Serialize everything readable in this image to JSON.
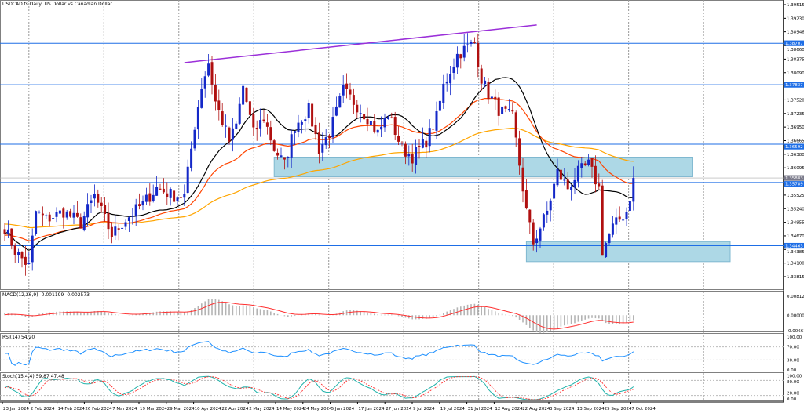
{
  "header": {
    "title": "USDCAD.fs Daily:  US Dollar vs Canadian Dollar"
  },
  "colors": {
    "bull": "#1428c8",
    "bear": "#b01010",
    "sma_fast": "#000000",
    "ema_mid": "#ff4500",
    "ma_slow": "#ffa500",
    "level": "#1e6ee6",
    "zone": "#add8e6",
    "trendline": "#9b30d9",
    "macd_hist": "#b4b4b4",
    "macd_signal": "#ff3030",
    "rsi": "#1e90ff",
    "stoch_main": "#20b2aa",
    "stoch_signal": "#ff3030"
  },
  "chart_data": {
    "type": "candlestick",
    "symbol": "USDCAD.fs",
    "timeframe": "Daily",
    "y_range": [
      1.33815,
      1.39515
    ],
    "y_ticks": [
      "1.39515",
      "1.39230",
      "1.38946",
      "1.38660",
      "1.38375",
      "1.38090",
      "1.37520",
      "1.37235",
      "1.36950",
      "1.36665",
      "1.36380",
      "1.36095",
      "1.35525",
      "1.35240",
      "1.34955",
      "1.34670",
      "1.34385",
      "1.34100",
      "1.33815"
    ],
    "x_ticks": [
      "23 Jan 2024",
      "2 Feb 2024",
      "14 Feb 2024",
      "26 Feb 2024",
      "7 Mar 2024",
      "19 Mar 2024",
      "29 Mar 2024",
      "10 Apr 2024",
      "22 Apr 2024",
      "2 May 2024",
      "14 May 2024",
      "24 May 2024",
      "5 Jun 2024",
      "17 Jun 2024",
      "27 Jun 2024",
      "9 Jul 2024",
      "19 Jul 2024",
      "31 Jul 2024",
      "12 Aug 2024",
      "22 Aug 2024",
      "3 Sep 2024",
      "13 Sep 2024",
      "25 Sep 2024",
      "7 Oct 2024"
    ],
    "price_path": [
      [
        0,
        1.3485
      ],
      [
        3,
        1.34357
      ],
      [
        7,
        1.34029
      ],
      [
        9,
        1.35179
      ],
      [
        12,
        1.35014
      ],
      [
        17,
        1.35179
      ],
      [
        22,
        1.34932
      ],
      [
        26,
        1.35507
      ],
      [
        31,
        1.34686
      ],
      [
        35,
        1.35014
      ],
      [
        40,
        1.35343
      ],
      [
        44,
        1.35671
      ],
      [
        49,
        1.35507
      ],
      [
        52,
        1.35507
      ],
      [
        55,
        1.36985
      ],
      [
        57,
        1.37807
      ],
      [
        59,
        1.383
      ],
      [
        61,
        1.37478
      ],
      [
        65,
        1.36657
      ],
      [
        67,
        1.36985
      ],
      [
        69,
        1.37807
      ],
      [
        72,
        1.36821
      ],
      [
        75,
        1.3715
      ],
      [
        78,
        1.36493
      ],
      [
        81,
        1.36164
      ],
      [
        84,
        1.36985
      ],
      [
        88,
        1.37314
      ],
      [
        91,
        1.36493
      ],
      [
        94,
        1.36821
      ],
      [
        98,
        1.37725
      ],
      [
        101,
        1.37478
      ],
      [
        105,
        1.3715
      ],
      [
        108,
        1.36821
      ],
      [
        111,
        1.37232
      ],
      [
        115,
        1.36493
      ],
      [
        118,
        1.36328
      ],
      [
        122,
        1.36657
      ],
      [
        125,
        1.3715
      ],
      [
        127,
        1.37807
      ],
      [
        131,
        1.38464
      ],
      [
        134,
        1.38628
      ],
      [
        136,
        1.3871
      ],
      [
        138,
        1.37971
      ],
      [
        140,
        1.37643
      ],
      [
        143,
        1.37314
      ],
      [
        147,
        1.3715
      ],
      [
        149,
        1.36164
      ],
      [
        151,
        1.35179
      ],
      [
        153,
        1.34522
      ],
      [
        157,
        1.35179
      ],
      [
        160,
        1.36
      ],
      [
        163,
        1.35671
      ],
      [
        166,
        1.36
      ],
      [
        169,
        1.36164
      ],
      [
        172,
        1.35671
      ],
      [
        173,
        1.34357
      ],
      [
        176,
        1.3485
      ],
      [
        180,
        1.35179
      ],
      [
        182,
        1.35803
      ]
    ],
    "levels": [
      {
        "value": 1.38707,
        "label": "1.38707"
      },
      {
        "value": 1.37837,
        "label": "1.37837"
      },
      {
        "value": 1.36592,
        "label": "1.36592"
      },
      {
        "value": 1.35789,
        "label": "1.35789"
      },
      {
        "value": 1.34463,
        "label": "1.34463"
      }
    ],
    "current_price": "1.35883",
    "zones": [
      {
        "from_bar": 78,
        "to_bar": 199,
        "high": 1.3632,
        "low": 1.3591
      },
      {
        "from_bar": 151,
        "to_bar": 210,
        "high": 1.3455,
        "low": 1.3413
      }
    ],
    "trendline": {
      "from": [
        52,
        1.383
      ],
      "to": [
        154,
        1.3909
      ]
    },
    "indicators": {
      "macd": {
        "label": "MACD(12,26,9) -0.001199 -0.002573",
        "ticks": [
          "0.008127",
          "0.000000",
          "-0.006618"
        ]
      },
      "rsi": {
        "label": "RSI(14) 54.20",
        "ticks": [
          "100.00",
          "70.00",
          "30.00",
          "0.00"
        ]
      },
      "stoch": {
        "label": "Stoch(15,4,4) 59.87 47.48",
        "ticks": [
          "100.00",
          "80.00",
          "20.00",
          "0.00"
        ]
      }
    }
  }
}
